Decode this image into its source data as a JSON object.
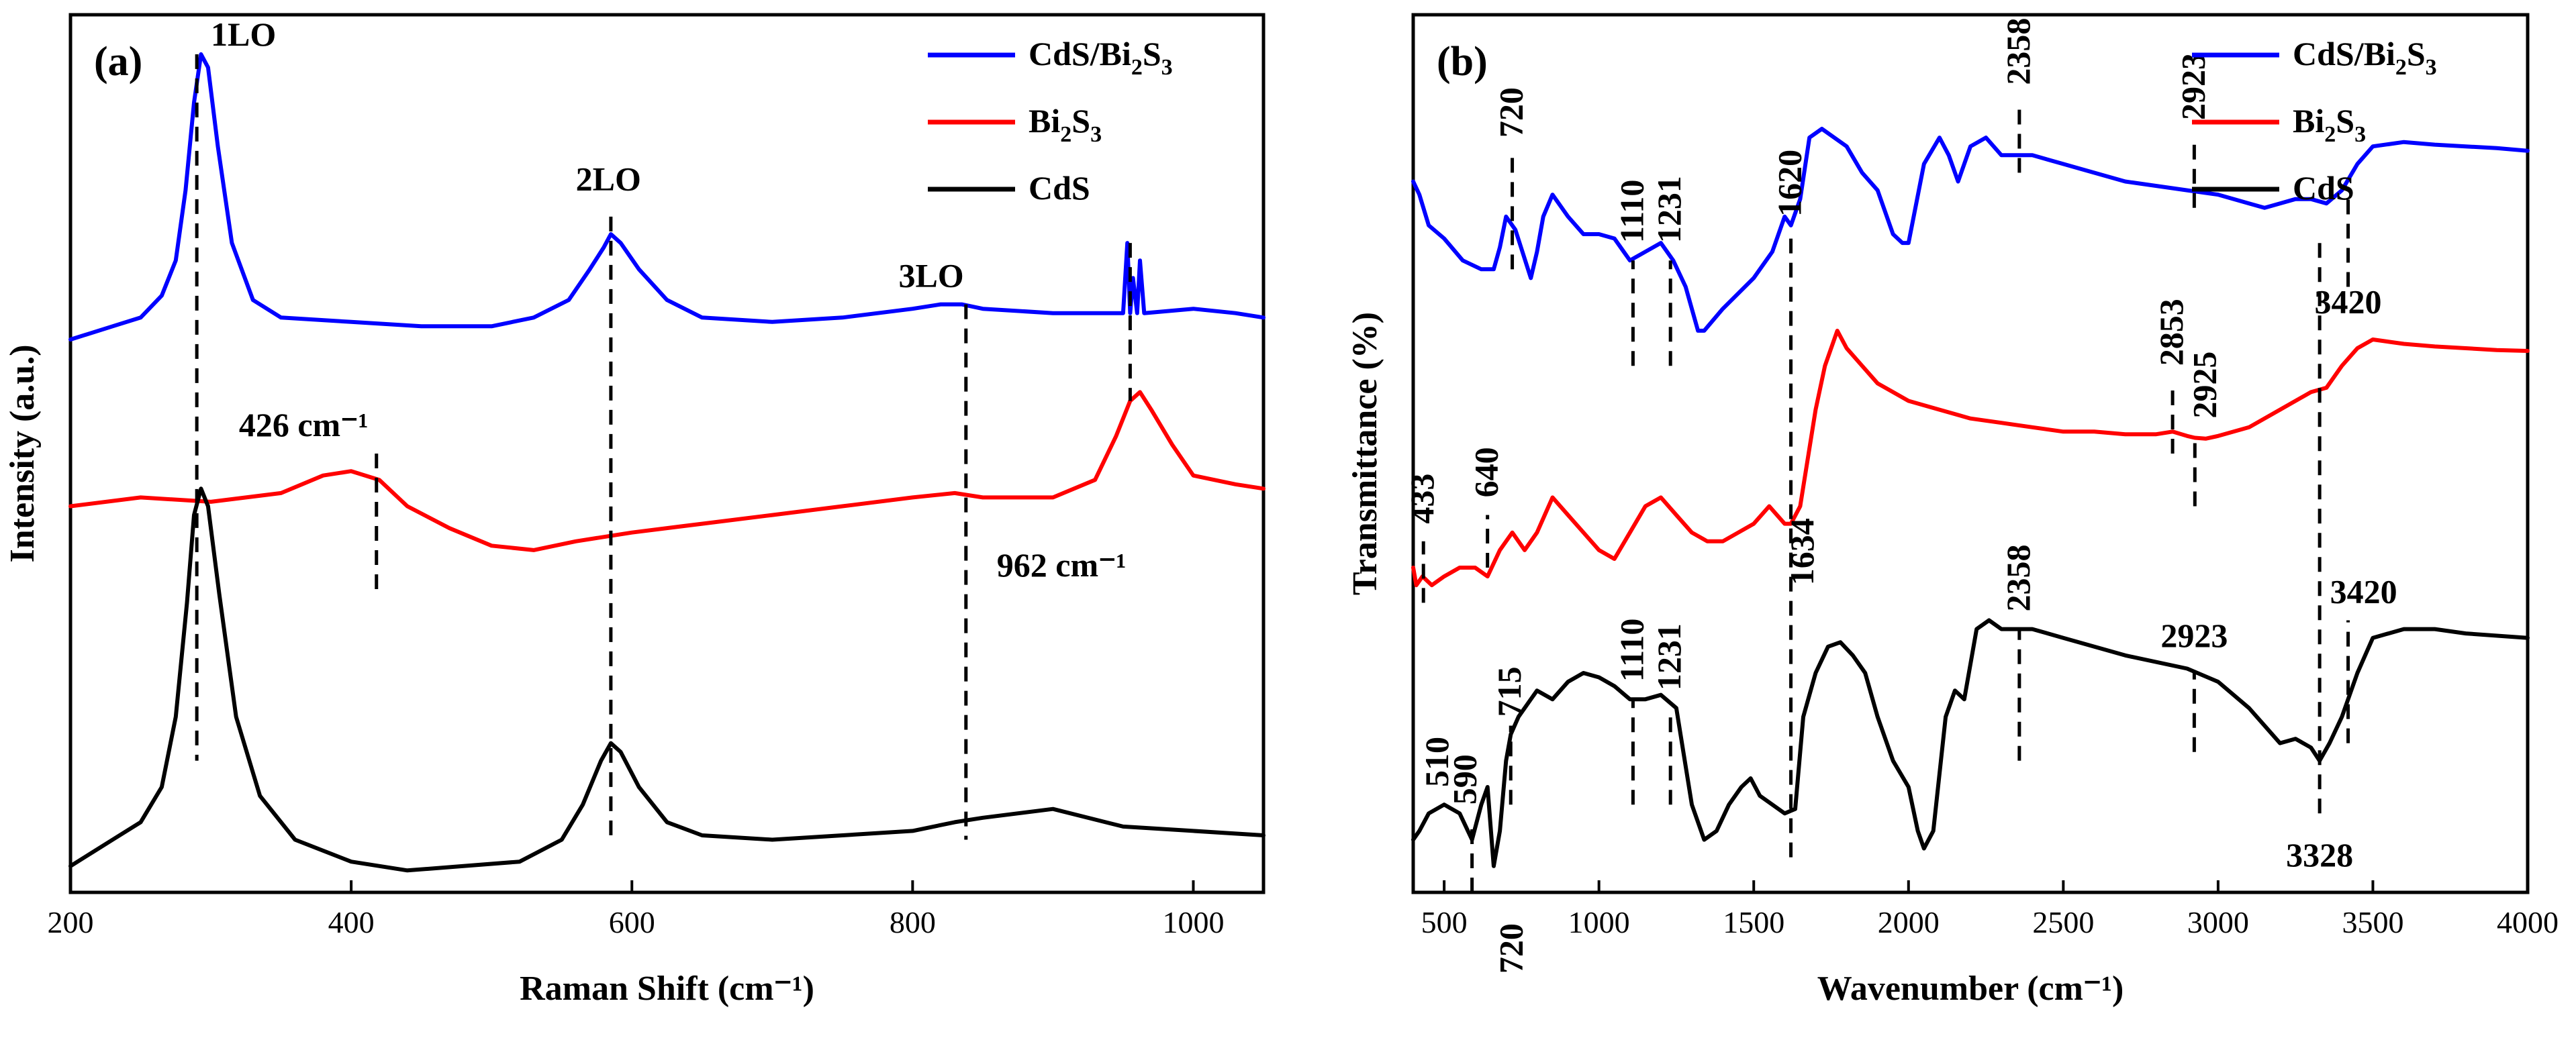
{
  "colors": {
    "cds": "#000000",
    "bi2s3": "#ff0000",
    "cds_bi2s3": "#0000ff"
  },
  "chart_data": [
    {
      "id": "a",
      "type": "line",
      "panel_label": "(a)",
      "xlabel": "Raman Shift (cm⁻¹)",
      "ylabel": "Intensity (a.u.)",
      "xlim": [
        200,
        1050
      ],
      "ylim": [
        0,
        1
      ],
      "xticks": [
        200,
        400,
        600,
        800,
        1000
      ],
      "xtick_labels": [
        "200",
        "400",
        "600",
        "800",
        "1000"
      ],
      "legend": [
        {
          "key": "cds_bi2s3",
          "label": "CdS/Bi",
          "sub": "2",
          "label2": "S",
          "sub2": "3"
        },
        {
          "key": "bi2s3",
          "label": "Bi",
          "sub": "2",
          "label2": "S",
          "sub2": "3"
        },
        {
          "key": "cds",
          "label": "CdS",
          "sub": "",
          "label2": "",
          "sub2": ""
        }
      ],
      "series": [
        {
          "key": "cds_bi2s3",
          "name": "CdS/Bi2S3",
          "x": [
            200,
            230,
            250,
            265,
            275,
            282,
            288,
            293,
            298,
            305,
            315,
            330,
            350,
            400,
            450,
            500,
            530,
            555,
            570,
            580,
            585,
            592,
            605,
            625,
            650,
            700,
            750,
            800,
            820,
            835,
            850,
            900,
            950,
            953,
            955,
            957,
            960,
            962,
            965,
            1000,
            1030,
            1050
          ],
          "y": [
            0.63,
            0.645,
            0.655,
            0.68,
            0.72,
            0.8,
            0.9,
            0.955,
            0.94,
            0.85,
            0.74,
            0.675,
            0.655,
            0.65,
            0.645,
            0.645,
            0.655,
            0.675,
            0.71,
            0.735,
            0.75,
            0.74,
            0.71,
            0.675,
            0.655,
            0.65,
            0.655,
            0.665,
            0.67,
            0.67,
            0.665,
            0.66,
            0.66,
            0.74,
            0.66,
            0.7,
            0.66,
            0.72,
            0.66,
            0.665,
            0.66,
            0.655
          ]
        },
        {
          "key": "bi2s3",
          "name": "Bi2S3",
          "x": [
            200,
            250,
            300,
            350,
            380,
            400,
            420,
            440,
            470,
            500,
            530,
            560,
            600,
            650,
            700,
            750,
            800,
            830,
            850,
            900,
            930,
            945,
            955,
            962,
            970,
            985,
            1000,
            1030,
            1050
          ],
          "y": [
            0.44,
            0.45,
            0.445,
            0.455,
            0.475,
            0.48,
            0.47,
            0.44,
            0.415,
            0.395,
            0.39,
            0.4,
            0.41,
            0.42,
            0.43,
            0.44,
            0.45,
            0.455,
            0.45,
            0.45,
            0.47,
            0.52,
            0.56,
            0.57,
            0.55,
            0.51,
            0.475,
            0.465,
            0.46
          ]
        },
        {
          "key": "cds",
          "name": "CdS",
          "x": [
            200,
            230,
            250,
            265,
            275,
            283,
            288,
            293,
            298,
            306,
            318,
            335,
            360,
            400,
            440,
            480,
            520,
            550,
            565,
            578,
            585,
            592,
            605,
            625,
            650,
            700,
            750,
            800,
            830,
            850,
            900,
            950,
            1000,
            1050
          ],
          "y": [
            0.03,
            0.06,
            0.08,
            0.12,
            0.2,
            0.33,
            0.43,
            0.46,
            0.44,
            0.34,
            0.2,
            0.11,
            0.06,
            0.035,
            0.025,
            0.03,
            0.035,
            0.06,
            0.1,
            0.15,
            0.17,
            0.16,
            0.12,
            0.08,
            0.065,
            0.06,
            0.065,
            0.07,
            0.08,
            0.085,
            0.095,
            0.075,
            0.07,
            0.065
          ]
        }
      ],
      "annotations": [
        {
          "text": "1LO",
          "x": 290,
          "y": 0.955,
          "dash_to": 0.15,
          "tx": 300,
          "ty": 0.965
        },
        {
          "text": "2LO",
          "x": 585,
          "y": 0.77,
          "dash_to": 0.06,
          "tx": 560,
          "ty": 0.8
        },
        {
          "text": "3LO",
          "x": 838,
          "y": 0.67,
          "dash_to": 0.06,
          "tx": 790,
          "ty": 0.69
        },
        {
          "text": "426 cm⁻¹",
          "x": 418,
          "y": 0.5,
          "dash_to": 0.34,
          "tx": 320,
          "ty": 0.52
        },
        {
          "text": "962 cm⁻¹",
          "x": 955,
          "y": 0.74,
          "dash_to": 0.56,
          "tx": 860,
          "ty": 0.36
        }
      ]
    },
    {
      "id": "b",
      "type": "line",
      "panel_label": "(b)",
      "xlabel": "Wavenumber (cm⁻¹)",
      "ylabel": "Transmittance (%)",
      "xlim": [
        400,
        4000
      ],
      "ylim": [
        0,
        1
      ],
      "xticks": [
        500,
        1000,
        1500,
        2000,
        2500,
        3000,
        3500,
        4000
      ],
      "xtick_labels": [
        "500",
        "1000",
        "1500",
        "2000",
        "2500",
        "3000",
        "3500",
        "4000"
      ],
      "legend": [
        {
          "key": "cds_bi2s3",
          "label": "CdS/Bi",
          "sub": "2",
          "label2": "S",
          "sub2": "3"
        },
        {
          "key": "bi2s3",
          "label": "Bi",
          "sub": "2",
          "label2": "S",
          "sub2": "3"
        },
        {
          "key": "cds",
          "label": "CdS",
          "sub": "",
          "label2": "",
          "sub2": ""
        }
      ],
      "series": [
        {
          "key": "cds_bi2s3",
          "name": "CdS/Bi2S3",
          "x": [
            400,
            420,
            450,
            500,
            560,
            620,
            660,
            680,
            700,
            730,
            780,
            800,
            820,
            850,
            900,
            950,
            1000,
            1050,
            1100,
            1150,
            1200,
            1240,
            1280,
            1320,
            1340,
            1400,
            1500,
            1560,
            1600,
            1620,
            1650,
            1680,
            1720,
            1760,
            1800,
            1850,
            1900,
            1950,
            1980,
            2000,
            2050,
            2100,
            2130,
            2160,
            2200,
            2250,
            2300,
            2358,
            2400,
            2500,
            2700,
            2900,
            3000,
            3100,
            3150,
            3200,
            3250,
            3300,
            3350,
            3400,
            3450,
            3500,
            3600,
            3700,
            3800,
            3900,
            4000
          ],
          "y": [
            0.81,
            0.795,
            0.76,
            0.745,
            0.72,
            0.71,
            0.71,
            0.735,
            0.77,
            0.755,
            0.7,
            0.73,
            0.77,
            0.795,
            0.77,
            0.75,
            0.75,
            0.745,
            0.72,
            0.73,
            0.74,
            0.72,
            0.69,
            0.64,
            0.64,
            0.665,
            0.7,
            0.73,
            0.77,
            0.76,
            0.79,
            0.86,
            0.87,
            0.86,
            0.85,
            0.82,
            0.8,
            0.75,
            0.74,
            0.74,
            0.83,
            0.86,
            0.84,
            0.81,
            0.85,
            0.86,
            0.84,
            0.84,
            0.84,
            0.83,
            0.81,
            0.8,
            0.795,
            0.785,
            0.78,
            0.785,
            0.79,
            0.79,
            0.785,
            0.8,
            0.83,
            0.85,
            0.855,
            0.852,
            0.85,
            0.848,
            0.845
          ]
        },
        {
          "key": "bi2s3",
          "name": "Bi2S3",
          "x": [
            400,
            410,
            430,
            460,
            500,
            550,
            600,
            640,
            680,
            720,
            760,
            800,
            850,
            900,
            950,
            1000,
            1050,
            1100,
            1150,
            1200,
            1250,
            1300,
            1350,
            1400,
            1450,
            1500,
            1550,
            1600,
            1620,
            1650,
            1700,
            1730,
            1770,
            1800,
            1850,
            1900,
            1950,
            2000,
            2100,
            2200,
            2300,
            2400,
            2500,
            2600,
            2700,
            2800,
            2853,
            2900,
            2925,
            2960,
            3000,
            3100,
            3200,
            3300,
            3350,
            3400,
            3450,
            3500,
            3600,
            3700,
            3800,
            3900,
            4000
          ],
          "y": [
            0.37,
            0.35,
            0.36,
            0.35,
            0.36,
            0.37,
            0.37,
            0.36,
            0.39,
            0.41,
            0.39,
            0.41,
            0.45,
            0.43,
            0.41,
            0.39,
            0.38,
            0.41,
            0.44,
            0.45,
            0.43,
            0.41,
            0.4,
            0.4,
            0.41,
            0.42,
            0.44,
            0.42,
            0.42,
            0.44,
            0.55,
            0.6,
            0.64,
            0.62,
            0.6,
            0.58,
            0.57,
            0.56,
            0.55,
            0.54,
            0.535,
            0.53,
            0.525,
            0.525,
            0.522,
            0.522,
            0.525,
            0.52,
            0.518,
            0.517,
            0.52,
            0.53,
            0.55,
            0.57,
            0.575,
            0.6,
            0.62,
            0.63,
            0.625,
            0.622,
            0.62,
            0.618,
            0.617
          ]
        },
        {
          "key": "cds",
          "name": "CdS",
          "x": [
            400,
            420,
            450,
            500,
            550,
            590,
            620,
            640,
            660,
            680,
            700,
            715,
            740,
            780,
            800,
            850,
            900,
            950,
            1000,
            1050,
            1100,
            1150,
            1200,
            1250,
            1300,
            1340,
            1380,
            1420,
            1460,
            1490,
            1520,
            1560,
            1600,
            1634,
            1660,
            1700,
            1740,
            1780,
            1820,
            1860,
            1900,
            1950,
            2000,
            2030,
            2050,
            2080,
            2120,
            2150,
            2180,
            2220,
            2260,
            2300,
            2358,
            2400,
            2500,
            2700,
            2900,
            3000,
            3100,
            3150,
            3200,
            3250,
            3300,
            3328,
            3360,
            3400,
            3450,
            3500,
            3600,
            3700,
            3800,
            4000
          ],
          "y": [
            0.06,
            0.07,
            0.09,
            0.1,
            0.09,
            0.06,
            0.1,
            0.12,
            0.03,
            0.07,
            0.15,
            0.18,
            0.2,
            0.22,
            0.23,
            0.22,
            0.24,
            0.25,
            0.245,
            0.235,
            0.22,
            0.22,
            0.225,
            0.21,
            0.1,
            0.06,
            0.07,
            0.1,
            0.12,
            0.13,
            0.11,
            0.1,
            0.09,
            0.095,
            0.2,
            0.25,
            0.28,
            0.285,
            0.27,
            0.25,
            0.2,
            0.15,
            0.12,
            0.07,
            0.05,
            0.07,
            0.2,
            0.23,
            0.22,
            0.3,
            0.31,
            0.3,
            0.3,
            0.3,
            0.29,
            0.27,
            0.255,
            0.24,
            0.21,
            0.19,
            0.17,
            0.175,
            0.165,
            0.15,
            0.17,
            0.2,
            0.25,
            0.29,
            0.3,
            0.3,
            0.295,
            0.29
          ]
        }
      ],
      "annotations": [
        {
          "text": "720",
          "x": 720,
          "y1": 0.71,
          "y2": 0.84,
          "ty": 0.86,
          "side": "top"
        },
        {
          "text": "1110",
          "x": 1110,
          "y1": 0.6,
          "y2": 0.72,
          "ty": 0.74,
          "side": "top"
        },
        {
          "text": "1231",
          "x": 1231,
          "y1": 0.6,
          "y2": 0.72,
          "ty": 0.74,
          "side": "top"
        },
        {
          "text": "1620",
          "x": 1620,
          "y1": 0.04,
          "y2": 0.75,
          "ty": 0.77,
          "side": "top"
        },
        {
          "text": "2358",
          "x": 2358,
          "y1": 0.82,
          "y2": 0.9,
          "ty": 0.92,
          "side": "top"
        },
        {
          "text": "2923",
          "x": 2923,
          "y1": 0.78,
          "y2": 0.86,
          "ty": 0.88,
          "side": "top"
        },
        {
          "text": "3420",
          "x": 3420,
          "y1": 0.69,
          "y2": 0.8,
          "tx": 3420,
          "ty": 0.66,
          "side": "horiz"
        },
        {
          "text": "433",
          "x": 433,
          "y1": 0.33,
          "y2": 0.4,
          "ty": 0.42,
          "side": "top"
        },
        {
          "text": "640",
          "x": 640,
          "y1": 0.37,
          "y2": 0.43,
          "ty": 0.45,
          "side": "top"
        },
        {
          "text": "2853",
          "x": 2853,
          "y1": 0.5,
          "y2": 0.58,
          "ty": 0.6,
          "side": "top"
        },
        {
          "text": "2925",
          "x": 2925,
          "y1": 0.44,
          "y2": 0.52,
          "tx": 2960,
          "ty": 0.54,
          "side": "top"
        },
        {
          "text": "1634",
          "x": 1634,
          "y1": 0.22,
          "y2": 0.22,
          "tx": 1660,
          "ty": 0.35,
          "side": "top"
        },
        {
          "text": "2358",
          "x": 2358,
          "y1": 0.15,
          "y2": 0.3,
          "ty": 0.32,
          "side": "top"
        },
        {
          "text": "2923",
          "x": 2923,
          "y1": 0.16,
          "y2": 0.25,
          "tx": 2923,
          "ty": 0.28,
          "side": "horiz"
        },
        {
          "text": "3420",
          "x": 3420,
          "y1": 0.17,
          "y2": 0.31,
          "tx": 3470,
          "ty": 0.33,
          "side": "horiz"
        },
        {
          "text": "3328",
          "x": 3328,
          "y1": 0.09,
          "y2": 0.74,
          "tx": 3328,
          "ty": 0.03,
          "side": "horiz"
        },
        {
          "text": "510",
          "x": 510,
          "y1": 0.1,
          "y2": 0.1,
          "tx": 480,
          "ty": 0.12,
          "side": "top"
        },
        {
          "text": "590",
          "x": 590,
          "y1": 0.0,
          "y2": 0.08,
          "tx": 570,
          "ty": 0.1,
          "side": "top"
        },
        {
          "text": "715",
          "x": 715,
          "y1": 0.1,
          "y2": 0.19,
          "ty": 0.2,
          "side": "top"
        },
        {
          "text": "1110",
          "x": 1110,
          "y1": 0.1,
          "y2": 0.22,
          "ty": 0.24,
          "side": "top"
        },
        {
          "text": "1231",
          "x": 1231,
          "y1": 0.1,
          "y2": 0.21,
          "ty": 0.23,
          "side": "top"
        },
        {
          "text": "720",
          "x": 720,
          "y1": 0.0,
          "y2": 0.0,
          "tx": 720,
          "ty": -0.02,
          "side": "bottom"
        }
      ]
    }
  ]
}
